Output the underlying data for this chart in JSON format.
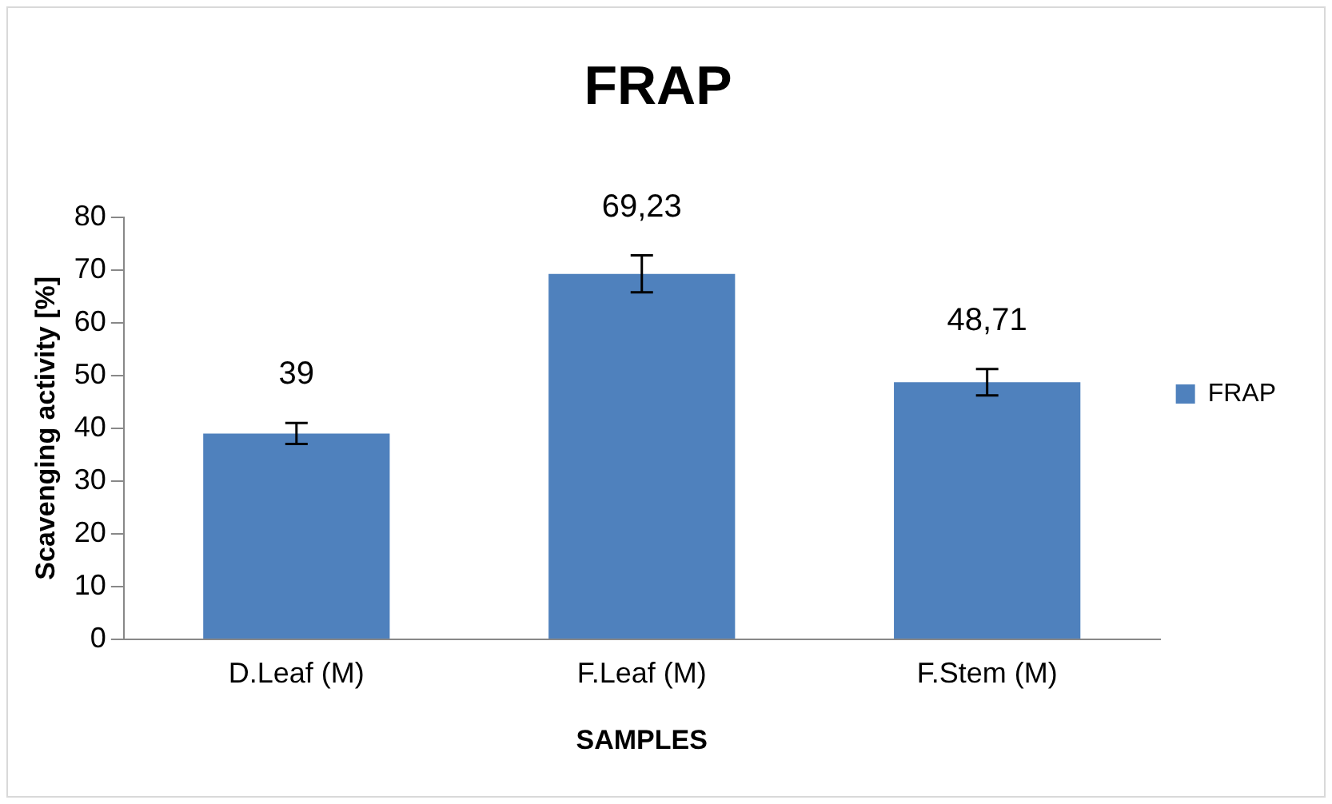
{
  "chart_data": {
    "type": "bar",
    "title": "FRAP",
    "xlabel": "SAMPLES",
    "ylabel": "Scavenging activity [%]",
    "categories": [
      "D.Leaf (M)",
      "F.Leaf (M)",
      "F.Stem (M)"
    ],
    "series": [
      {
        "name": "FRAP",
        "color": "#4f81bd",
        "values": [
          39,
          69.23,
          48.71
        ],
        "errors": [
          2,
          3.5,
          2.5
        ],
        "value_labels": [
          "39",
          "69,23",
          "48,71"
        ]
      }
    ],
    "ylim": [
      0,
      80
    ],
    "yticks": [
      0,
      10,
      20,
      30,
      40,
      50,
      60,
      70,
      80
    ],
    "grid": false,
    "legend": "right"
  }
}
